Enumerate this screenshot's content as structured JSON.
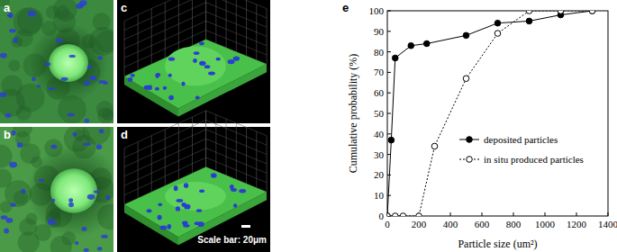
{
  "panel_labels": [
    "a",
    "b",
    "c",
    "d",
    "e"
  ],
  "scale_bar": "Scale bar: 20μm",
  "chart_data": {
    "type": "line",
    "x_label": "Particle size (um²)",
    "y_label": "Cumulative probability (%)",
    "xlim": [
      0,
      1400
    ],
    "ylim": [
      0,
      100
    ],
    "xticks": [
      0,
      200,
      400,
      600,
      800,
      1000,
      1200,
      1400
    ],
    "yticks": [
      0,
      10,
      20,
      30,
      40,
      50,
      60,
      70,
      80,
      90,
      100
    ],
    "grid": false,
    "legend": "lower right",
    "series": [
      {
        "name": "deposited particles",
        "color": "#000000",
        "marker": "filled_circle",
        "line_style": "solid",
        "x": [
          0,
          25,
          50,
          150,
          250,
          500,
          700,
          900,
          1100,
          1300
        ],
        "values": [
          0,
          37,
          77,
          83,
          84,
          88,
          94,
          95,
          98,
          100
        ]
      },
      {
        "name": "in situ produced particles",
        "color": "#000000",
        "marker": "open_circle",
        "line_style": "dotted",
        "x": [
          0,
          50,
          100,
          200,
          300,
          500,
          700,
          900,
          1100,
          1300
        ],
        "values": [
          0,
          0,
          0,
          0,
          34,
          67,
          89,
          100,
          100,
          100
        ]
      }
    ]
  }
}
